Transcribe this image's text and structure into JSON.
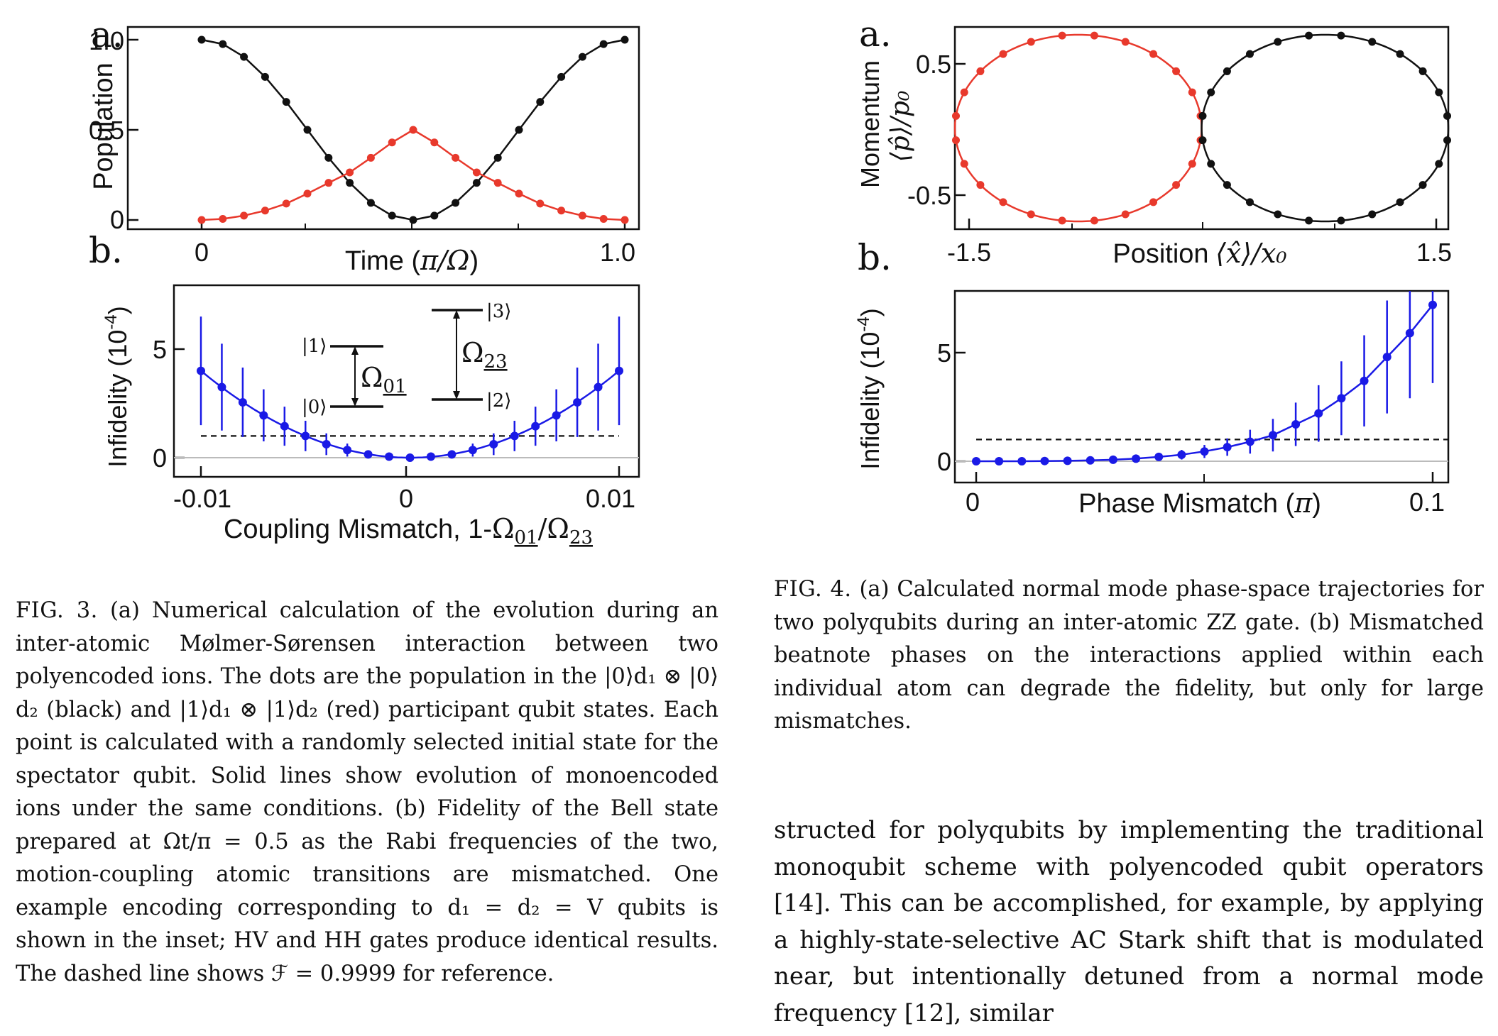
{
  "fig3": {
    "panel_a": {
      "label": "a.",
      "ylabel": "Population",
      "xlabel_text": "Time (",
      "xlabel_math": "π/Ω",
      "xlabel_close": ")",
      "xticks": [
        "0",
        "1.0"
      ],
      "yticks": [
        "0",
        "0.5",
        "1.0"
      ]
    },
    "panel_b": {
      "label": "b.",
      "ylabel": "Infidelity (10",
      "ylabel_exp": "-4",
      "ylabel_close": ")",
      "xlabel_text": "Coupling Mismatch, 1-",
      "xlabel_math": "Ω",
      "xlabel_sub1": "01",
      "xlabel_slash": "/Ω",
      "xlabel_sub2": "23",
      "xticks": [
        "-0.01",
        "0",
        "0.01"
      ],
      "yticks": [
        "0",
        "5"
      ],
      "inset": {
        "ket1": "|1⟩",
        "ket0": "|0⟩",
        "ket3": "|3⟩",
        "ket2": "|2⟩",
        "omega01": "Ω",
        "omega01_sub": "01",
        "omega23": "Ω",
        "omega23_sub": "23"
      }
    },
    "caption": {
      "fignum": "FIG. 3.",
      "text": " (a) Numerical calculation of the evolution during an inter-atomic Mølmer-Sørensen interaction between two polyencoded ions. The dots are the population in the |0⟩d₁ ⊗ |0⟩d₂ (black) and |1⟩d₁ ⊗ |1⟩d₂ (red) participant qubit states. Each point is calculated with a randomly selected initial state for the spectator qubit. Solid lines show evolution of monoencoded ions under the same conditions. (b) Fidelity of the Bell state prepared at Ωt/π = 0.5 as the Rabi frequencies of the two, motion-coupling atomic transitions are mismatched. One example encoding corresponding to d₁ = d₂ = V qubits is shown in the inset; HV and HH gates produce identical results. The dashed line shows ℱ = 0.9999 for reference."
    }
  },
  "fig4": {
    "panel_a": {
      "label": "a.",
      "ylabel_text": "Momentum",
      "ylabel_math": "⟨p̂⟩/p₀",
      "xlabel_text": "Position",
      "xlabel_math": "⟨x̂⟩/x₀",
      "xticks": [
        "-1.5",
        "1.5"
      ],
      "yticks": [
        "-0.5",
        "0.5"
      ]
    },
    "panel_b": {
      "label": "b.",
      "ylabel": "Infidelity (10",
      "ylabel_exp": "-4",
      "ylabel_close": ")",
      "xlabel_text": "Phase Mismatch (",
      "xlabel_math": "π",
      "xlabel_close": ")",
      "xticks": [
        "0",
        "0.1"
      ],
      "yticks": [
        "0",
        "5"
      ]
    },
    "caption": {
      "fignum": "FIG. 4.",
      "text": " (a) Calculated normal mode phase-space trajectories for two polyqubits during an inter-atomic ZZ gate. (b) Mismatched beatnote phases on the interactions applied within each individual atom can degrade the fidelity, but only for large mismatches."
    }
  },
  "body_text": "structed for polyqubits by implementing the traditional monoqubit scheme with polyencoded qubit operators [14]. This can be accomplished, for example, by applying a highly-state-selective AC Stark shift that is modulated near, but intentionally detuned from a normal mode frequency [12], similar",
  "colors": {
    "black_series": "#111111",
    "red_series": "#e8392c",
    "blue_series": "#1a1ae6",
    "dashed": "#111111",
    "baseline": "#bbbbbb"
  },
  "chart_data": [
    {
      "type": "line",
      "panel": "fig3a",
      "xlim": [
        0,
        1
      ],
      "ylim": [
        0,
        1
      ],
      "series": [
        {
          "color": "black",
          "x": [
            0,
            0.05,
            0.1,
            0.15,
            0.2,
            0.25,
            0.3,
            0.35,
            0.4,
            0.45,
            0.5,
            0.55,
            0.6,
            0.65,
            0.7,
            0.75,
            0.8,
            0.85,
            0.9,
            0.95,
            1.0
          ],
          "values": [
            1.0,
            0.976,
            0.905,
            0.794,
            0.655,
            0.5,
            0.345,
            0.206,
            0.095,
            0.024,
            0.0,
            0.024,
            0.095,
            0.206,
            0.345,
            0.5,
            0.655,
            0.794,
            0.905,
            0.976,
            1.0
          ]
        },
        {
          "color": "red",
          "x": [
            0,
            0.05,
            0.1,
            0.15,
            0.2,
            0.25,
            0.3,
            0.35,
            0.4,
            0.45,
            0.5,
            0.55,
            0.6,
            0.65,
            0.7,
            0.75,
            0.8,
            0.85,
            0.9,
            0.95,
            1.0
          ],
          "values": [
            0.0,
            0.006,
            0.024,
            0.052,
            0.091,
            0.146,
            0.206,
            0.264,
            0.345,
            0.43,
            0.5,
            0.43,
            0.345,
            0.264,
            0.206,
            0.146,
            0.091,
            0.052,
            0.024,
            0.006,
            0.0
          ]
        }
      ]
    },
    {
      "type": "scatter",
      "panel": "fig3b",
      "xlim": [
        -0.01,
        0.01
      ],
      "ylim": [
        0,
        7
      ],
      "dashed_level": 1.0,
      "series": [
        {
          "color": "blue",
          "x": [
            -0.01,
            -0.009,
            -0.008,
            -0.007,
            -0.006,
            -0.005,
            -0.004,
            -0.003,
            -0.002,
            -0.001,
            0,
            0.001,
            0.002,
            0.003,
            0.004,
            0.005,
            0.006,
            0.007,
            0.008,
            0.009,
            0.01
          ],
          "values": [
            4.0,
            3.25,
            2.55,
            1.95,
            1.45,
            1.0,
            0.62,
            0.35,
            0.15,
            0.05,
            0.0,
            0.05,
            0.15,
            0.35,
            0.62,
            1.0,
            1.45,
            1.95,
            2.55,
            3.25,
            4.0
          ],
          "errors": [
            2.5,
            2.0,
            1.6,
            1.2,
            0.9,
            0.7,
            0.5,
            0.3,
            0.15,
            0.05,
            0.02,
            0.05,
            0.15,
            0.3,
            0.5,
            0.7,
            0.9,
            1.2,
            1.6,
            2.0,
            2.5
          ]
        }
      ]
    },
    {
      "type": "scatter",
      "panel": "fig4a",
      "xlim": [
        -1.6,
        1.6
      ],
      "ylim": [
        -0.65,
        0.65
      ],
      "series": [
        {
          "color": "red",
          "center_x": -0.8,
          "center_y": 0.0,
          "radius_x": 0.8,
          "radius_y": 0.6,
          "points": 24
        },
        {
          "color": "black",
          "center_x": 0.8,
          "center_y": 0.0,
          "radius_x": 0.8,
          "radius_y": 0.6,
          "points": 24
        }
      ]
    },
    {
      "type": "scatter",
      "panel": "fig4b",
      "xlim": [
        0,
        0.1
      ],
      "ylim": [
        0,
        7
      ],
      "dashed_level": 1.0,
      "series": [
        {
          "color": "blue",
          "x": [
            0,
            0.005,
            0.01,
            0.015,
            0.02,
            0.025,
            0.03,
            0.035,
            0.04,
            0.045,
            0.05,
            0.055,
            0.06,
            0.065,
            0.07,
            0.075,
            0.08,
            0.085,
            0.09,
            0.095,
            0.1
          ],
          "values": [
            0.0,
            0.0,
            0.0,
            0.01,
            0.02,
            0.04,
            0.07,
            0.12,
            0.2,
            0.3,
            0.45,
            0.65,
            0.9,
            1.2,
            1.7,
            2.2,
            2.9,
            3.7,
            4.8,
            5.9,
            7.2
          ],
          "errors": [
            0.0,
            0.0,
            0.0,
            0.01,
            0.02,
            0.04,
            0.06,
            0.1,
            0.15,
            0.22,
            0.3,
            0.4,
            0.55,
            0.75,
            1.0,
            1.3,
            1.7,
            2.1,
            2.6,
            3.0,
            3.6
          ]
        }
      ]
    }
  ]
}
